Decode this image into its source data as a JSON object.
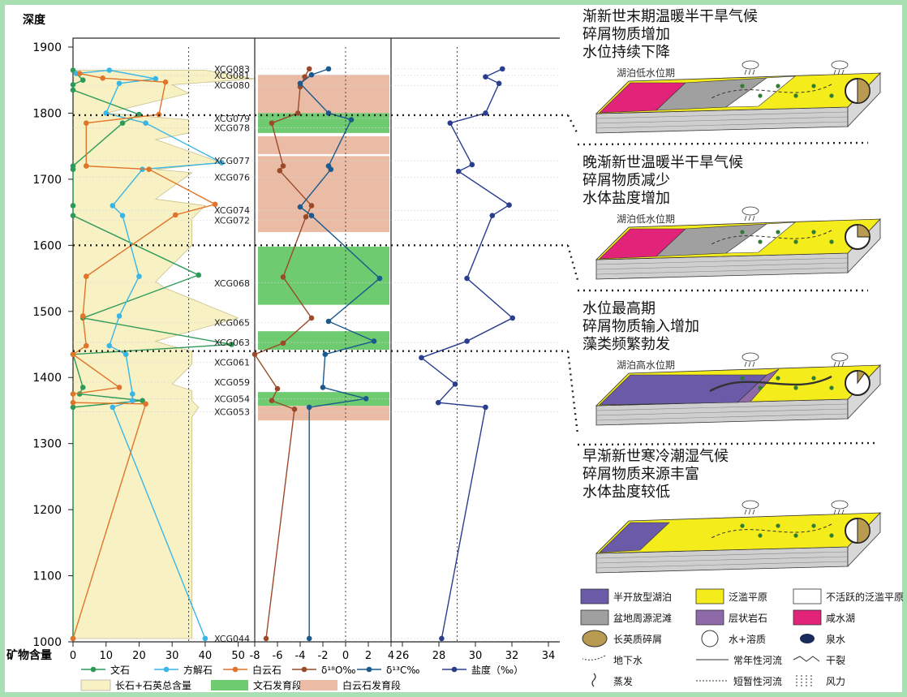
{
  "chart_data": {
    "type": "line",
    "y_axis": {
      "title": "深度",
      "ticks": [
        "1900",
        "1800",
        "1700",
        "1600",
        "1500",
        "1400",
        "1300",
        "1200",
        "1100",
        "1000"
      ],
      "range": [
        1000,
        1900
      ]
    },
    "x_axis_title": "矿物含量",
    "panels": [
      {
        "name": "mineral",
        "ticks": [
          "0",
          "10",
          "20",
          "30",
          "40",
          "50"
        ],
        "range": [
          0,
          55
        ]
      },
      {
        "name": "isotope",
        "ticks": [
          "-8",
          "-6",
          "-4",
          "-2",
          "0",
          "2",
          "4"
        ],
        "range": [
          -8,
          4
        ]
      },
      {
        "name": "salinity",
        "ticks": [
          "26",
          "28",
          "30",
          "32",
          "34"
        ],
        "range": [
          25,
          35
        ]
      }
    ],
    "samples": [
      {
        "label": "XCG083",
        "depth": 1867
      },
      {
        "label": "XCG081",
        "depth": 1857
      },
      {
        "label": "XCG080",
        "depth": 1842
      },
      {
        "label": "XCG079",
        "depth": 1792
      },
      {
        "label": "XCG078",
        "depth": 1778
      },
      {
        "label": "XCG077",
        "depth": 1728
      },
      {
        "label": "XCG076",
        "depth": 1703
      },
      {
        "label": "XCG074",
        "depth": 1653
      },
      {
        "label": "XCG072",
        "depth": 1638
      },
      {
        "label": "XCG068",
        "depth": 1543
      },
      {
        "label": "XCG065",
        "depth": 1483
      },
      {
        "label": "XCG063",
        "depth": 1453
      },
      {
        "label": "XCG061",
        "depth": 1423
      },
      {
        "label": "XCG059",
        "depth": 1393
      },
      {
        "label": "XCG054",
        "depth": 1368
      },
      {
        "label": "XCG053",
        "depth": 1348
      },
      {
        "label": "XCG044",
        "depth": 1005
      }
    ],
    "series": [
      {
        "name": "文石",
        "panel": "mineral",
        "color": "#2e9a5a",
        "points": [
          [
            0,
            1865
          ],
          [
            3,
            1850
          ],
          [
            0,
            1843
          ],
          [
            0,
            1835
          ],
          [
            20,
            1798
          ],
          [
            15,
            1785
          ],
          [
            0,
            1720
          ],
          [
            0,
            1715
          ],
          [
            0,
            1660
          ],
          [
            0,
            1645
          ],
          [
            38,
            1555
          ],
          [
            3,
            1490
          ],
          [
            48,
            1450
          ],
          [
            0,
            1435
          ],
          [
            3,
            1385
          ],
          [
            2,
            1375
          ],
          [
            21,
            1365
          ],
          [
            0,
            1355
          ],
          [
            0,
            1005
          ]
        ]
      },
      {
        "name": "方解石",
        "panel": "mineral",
        "color": "#3ab6e6",
        "points": [
          [
            1,
            1860
          ],
          [
            11,
            1865
          ],
          [
            25,
            1852
          ],
          [
            14,
            1845
          ],
          [
            10,
            1800
          ],
          [
            22,
            1785
          ],
          [
            45,
            1725
          ],
          [
            21,
            1715
          ],
          [
            12,
            1660
          ],
          [
            15,
            1645
          ],
          [
            20,
            1553
          ],
          [
            14,
            1493
          ],
          [
            11,
            1448
          ],
          [
            16,
            1435
          ],
          [
            18,
            1375
          ],
          [
            18,
            1365
          ],
          [
            12,
            1355
          ],
          [
            40,
            1005
          ]
        ]
      },
      {
        "name": "白云石",
        "panel": "mineral",
        "color": "#e0742a",
        "points": [
          [
            2,
            1860
          ],
          [
            9,
            1853
          ],
          [
            28,
            1847
          ],
          [
            26,
            1798
          ],
          [
            4,
            1785
          ],
          [
            4,
            1720
          ],
          [
            23,
            1715
          ],
          [
            43,
            1662
          ],
          [
            31,
            1646
          ],
          [
            4,
            1553
          ],
          [
            3,
            1493
          ],
          [
            4,
            1448
          ],
          [
            0,
            1435
          ],
          [
            14,
            1385
          ],
          [
            0,
            1375
          ],
          [
            0,
            1362
          ],
          [
            22,
            1360
          ],
          [
            0,
            1005
          ]
        ]
      },
      {
        "name": "δ¹⁸O‰",
        "panel": "isotope",
        "color": "#9a4a2a",
        "points": [
          [
            -3.2,
            1867
          ],
          [
            -3.6,
            1855
          ],
          [
            -4.0,
            1840
          ],
          [
            -4.2,
            1800
          ],
          [
            -6.5,
            1785
          ],
          [
            -5.5,
            1720
          ],
          [
            -5.8,
            1713
          ],
          [
            -3.0,
            1660
          ],
          [
            -3.5,
            1643
          ],
          [
            -5.5,
            1552
          ],
          [
            -3.0,
            1490
          ],
          [
            -5.5,
            1452
          ],
          [
            -8.0,
            1435
          ],
          [
            -6.0,
            1383
          ],
          [
            -6.5,
            1365
          ],
          [
            -4.5,
            1352
          ],
          [
            -7.0,
            1005
          ]
        ]
      },
      {
        "name": "δ¹³C‰",
        "panel": "isotope",
        "color": "#1a5a8e",
        "points": [
          [
            -1.5,
            1867
          ],
          [
            -3.0,
            1858
          ],
          [
            -4.0,
            1845
          ],
          [
            -1.5,
            1800
          ],
          [
            0.5,
            1790
          ],
          [
            -1.5,
            1720
          ],
          [
            -1.3,
            1715
          ],
          [
            -4.0,
            1658
          ],
          [
            -3.0,
            1645
          ],
          [
            3.0,
            1550
          ],
          [
            -1.5,
            1485
          ],
          [
            2.5,
            1455
          ],
          [
            -1.8,
            1435
          ],
          [
            -2.0,
            1385
          ],
          [
            1.8,
            1368
          ],
          [
            -3.2,
            1355
          ],
          [
            -3.2,
            1005
          ]
        ]
      },
      {
        "name": "盐度（‰）",
        "panel": "salinity",
        "color": "#2a3d8f",
        "points": [
          [
            31.6,
            1867
          ],
          [
            30.6,
            1855
          ],
          [
            31.4,
            1845
          ],
          [
            30.6,
            1800
          ],
          [
            28.5,
            1785
          ],
          [
            29.8,
            1722
          ],
          [
            29.0,
            1712
          ],
          [
            32.0,
            1661
          ],
          [
            31.0,
            1645
          ],
          [
            29.5,
            1550
          ],
          [
            32.2,
            1490
          ],
          [
            29.5,
            1455
          ],
          [
            26.8,
            1430
          ],
          [
            28.8,
            1390
          ],
          [
            27.8,
            1362
          ],
          [
            30.6,
            1355
          ],
          [
            28.0,
            1005
          ]
        ]
      }
    ],
    "total_area": {
      "name": "长石+石英总含量",
      "points": [
        [
          40,
          1865
        ],
        [
          55,
          1852
        ],
        [
          30,
          1843
        ],
        [
          35,
          1830
        ],
        [
          10,
          1800
        ],
        [
          35,
          1790
        ],
        [
          35,
          1770
        ],
        [
          25,
          1760
        ],
        [
          45,
          1725
        ],
        [
          25,
          1715
        ],
        [
          36,
          1710
        ],
        [
          25,
          1670
        ],
        [
          40,
          1660
        ],
        [
          36,
          1640
        ],
        [
          36,
          1600
        ],
        [
          25,
          1545
        ],
        [
          28,
          1535
        ],
        [
          50,
          1490
        ],
        [
          25,
          1455
        ],
        [
          28,
          1450
        ],
        [
          36,
          1440
        ],
        [
          36,
          1420
        ],
        [
          30,
          1390
        ],
        [
          36,
          1380
        ],
        [
          36,
          1365
        ],
        [
          38,
          1355
        ],
        [
          36,
          1340
        ],
        [
          36,
          1005
        ]
      ]
    },
    "bands": [
      {
        "type": "dolomite",
        "from": 1800,
        "to": 1858
      },
      {
        "type": "aragonite",
        "from": 1770,
        "to": 1800
      },
      {
        "type": "dolomite",
        "from": 1738,
        "to": 1765
      },
      {
        "type": "dolomite",
        "from": 1620,
        "to": 1735
      },
      {
        "type": "aragonite",
        "from": 1510,
        "to": 1598
      },
      {
        "type": "aragonite",
        "from": 1442,
        "to": 1470
      },
      {
        "type": "aragonite",
        "from": 1357,
        "to": 1378
      },
      {
        "type": "dolomite",
        "from": 1335,
        "to": 1357
      }
    ],
    "dividers": [
      1797,
      1600,
      1440
    ],
    "vertical_dashed": [
      {
        "panel": "mineral",
        "value": 35
      },
      {
        "panel": "isotope",
        "value": 0
      },
      {
        "panel": "salinity",
        "value": 29
      }
    ],
    "legend": [
      {
        "symbol": "line",
        "label": "文石",
        "color": "#2e9a5a"
      },
      {
        "symbol": "line",
        "label": "方解石",
        "color": "#3ab6e6"
      },
      {
        "symbol": "line",
        "label": "白云石",
        "color": "#e0742a"
      },
      {
        "symbol": "line",
        "label": "δ¹⁸O‰",
        "color": "#9a4a2a"
      },
      {
        "symbol": "line",
        "label": "δ¹³C‰",
        "color": "#1a5a8e"
      },
      {
        "symbol": "line",
        "label": "盐度（‰）",
        "color": "#2a3d8f"
      },
      {
        "symbol": "area",
        "label": "长石+石英总含量",
        "color": "#f8f1c4"
      },
      {
        "symbol": "area",
        "label": "文石发育段",
        "color": "#6fcb6f"
      },
      {
        "symbol": "area",
        "label": "白云石发育段",
        "color": "#ebbca5"
      }
    ]
  },
  "stages": [
    {
      "title": [
        "渐新世末期温暖半干旱气候",
        "碎屑物质增加",
        "水位持续下降"
      ],
      "water_label": "湖泊低水位期"
    },
    {
      "title": [
        "晚渐新世温暖半干旱气候",
        "碎屑物质减少",
        "水体盐度增加"
      ],
      "water_label": "湖泊低水位期"
    },
    {
      "title": [
        "水位最高期",
        "碎屑物质输入增加",
        "藻类频繁勃发"
      ],
      "water_label": "湖泊高水位期"
    },
    {
      "title": [
        "早渐新世寒冷潮湿气候",
        "碎屑物质来源丰富",
        "水体盐度较低"
      ],
      "water_label": ""
    }
  ],
  "facies_legend": [
    {
      "label": "半开放型湖泊",
      "color": "#6a5aa8",
      "icon": "swatch"
    },
    {
      "label": "泛滥平原",
      "color": "#f5ec1c",
      "icon": "swatch"
    },
    {
      "label": "不活跃的泛滥平原",
      "color": "#ffffff",
      "icon": "swatch"
    },
    {
      "label": "盆地周源泥滩",
      "color": "#a0a0a0",
      "icon": "swatch"
    },
    {
      "label": "层状岩石",
      "color": "#8f6aa8",
      "icon": "swatch"
    },
    {
      "label": "咸水湖",
      "color": "#e2237a",
      "icon": "swatch"
    },
    {
      "label": "长英质碎屑",
      "color": "#b89a50",
      "icon": "ellipse"
    },
    {
      "label": "水+溶质",
      "color": "#ffffff",
      "icon": "circle"
    },
    {
      "label": "泉水",
      "color": "#1a2a5a",
      "icon": "dot"
    },
    {
      "label": "地下水",
      "color": "#333333",
      "icon": "groundwater-arrow"
    },
    {
      "label": "常年性河流",
      "color": "#333333",
      "icon": "river-line"
    },
    {
      "label": "干裂",
      "color": "#333333",
      "icon": "crack"
    },
    {
      "label": "蒸发",
      "color": "#333333",
      "icon": "evaporation"
    },
    {
      "label": "短暂性河流",
      "color": "#333333",
      "icon": "ephemeral-river"
    },
    {
      "label": "风力",
      "color": "#333333",
      "icon": "wind"
    }
  ]
}
